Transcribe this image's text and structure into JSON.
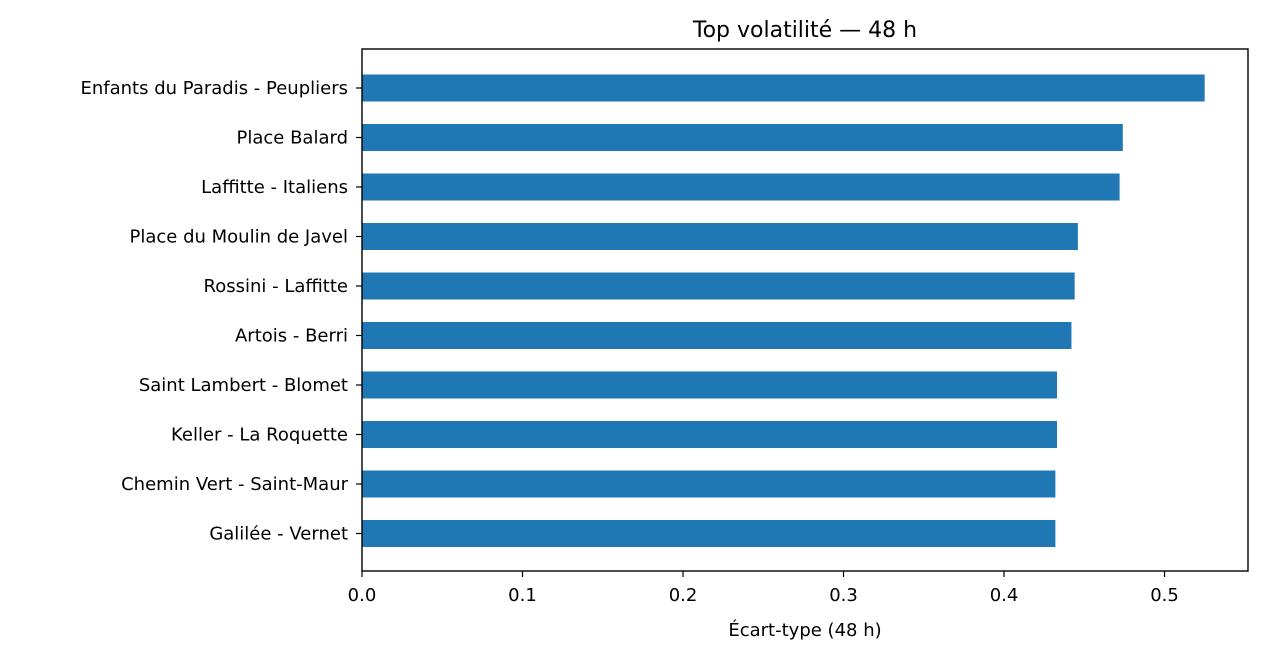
{
  "chart_data": {
    "type": "bar",
    "orientation": "horizontal",
    "title": "Top volatilité — 48 h",
    "xlabel": "Écart-type (48 h)",
    "ylabel": "",
    "xlim": [
      0,
      0.552
    ],
    "xticks": [
      "0.0",
      "0.1",
      "0.2",
      "0.3",
      "0.4",
      "0.5"
    ],
    "grid": false,
    "bar_color": "#1f77b4",
    "categories": [
      "Enfants du Paradis - Peupliers",
      "Place Balard",
      "Laffitte - Italiens",
      "Place du Moulin de Javel",
      "Rossini - Laffitte",
      "Artois - Berri",
      "Saint Lambert - Blomet",
      "Keller - La Roquette",
      "Chemin Vert - Saint-Maur",
      "Galilée - Vernet"
    ],
    "values": [
      0.525,
      0.474,
      0.472,
      0.446,
      0.444,
      0.442,
      0.433,
      0.433,
      0.432,
      0.432
    ]
  }
}
